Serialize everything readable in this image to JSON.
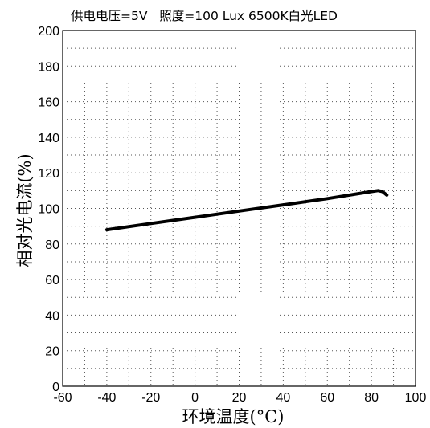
{
  "chart_data": {
    "type": "line",
    "title": "供电电压=5V   照度=100 Lux 6500K白光LED",
    "xlabel": "环境温度(°C)",
    "ylabel": "相对光电流(%)",
    "xlim": [
      -60,
      100
    ],
    "ylim": [
      0,
      200
    ],
    "x_ticks": [
      -60,
      -40,
      -20,
      0,
      20,
      40,
      60,
      80,
      100
    ],
    "y_ticks": [
      0,
      20,
      40,
      60,
      80,
      100,
      120,
      140,
      160,
      180,
      200
    ],
    "grid": "dotted",
    "series": [
      {
        "x": [
          -40,
          -20,
          0,
          20,
          40,
          60,
          80,
          83,
          85,
          87
        ],
        "y": [
          88,
          91.5,
          95,
          98.5,
          102,
          105.5,
          109.5,
          110,
          109.5,
          107.5
        ]
      }
    ]
  }
}
